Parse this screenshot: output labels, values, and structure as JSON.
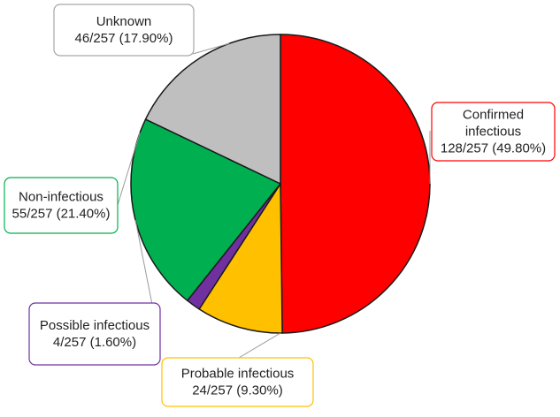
{
  "chart_data": {
    "type": "pie",
    "total": 257,
    "slices": [
      {
        "label": "Confirmed infectious",
        "label_lines": [
          "Confirmed",
          "infectious"
        ],
        "value_text": "128/257 (49.80%)",
        "count": 128,
        "percent": 49.8,
        "color": "#ff0000"
      },
      {
        "label": "Probable infectious",
        "label_lines": [
          "Probable infectious"
        ],
        "value_text": "24/257 (9.30%)",
        "count": 24,
        "percent": 9.3,
        "color": "#ffc000"
      },
      {
        "label": "Possible infectious",
        "label_lines": [
          "Possible infectious"
        ],
        "value_text": "4/257 (1.60%)",
        "count": 4,
        "percent": 1.6,
        "color": "#7030a0"
      },
      {
        "label": "Non-infectious",
        "label_lines": [
          "Non-infectious"
        ],
        "value_text": "55/257 (21.40%)",
        "count": 55,
        "percent": 21.4,
        "color": "#00b050"
      },
      {
        "label": "Unknown",
        "label_lines": [
          "Unknown"
        ],
        "value_text": "46/257 (17.90%)",
        "count": 46,
        "percent": 17.9,
        "color": "#bfbfbf"
      }
    ]
  }
}
